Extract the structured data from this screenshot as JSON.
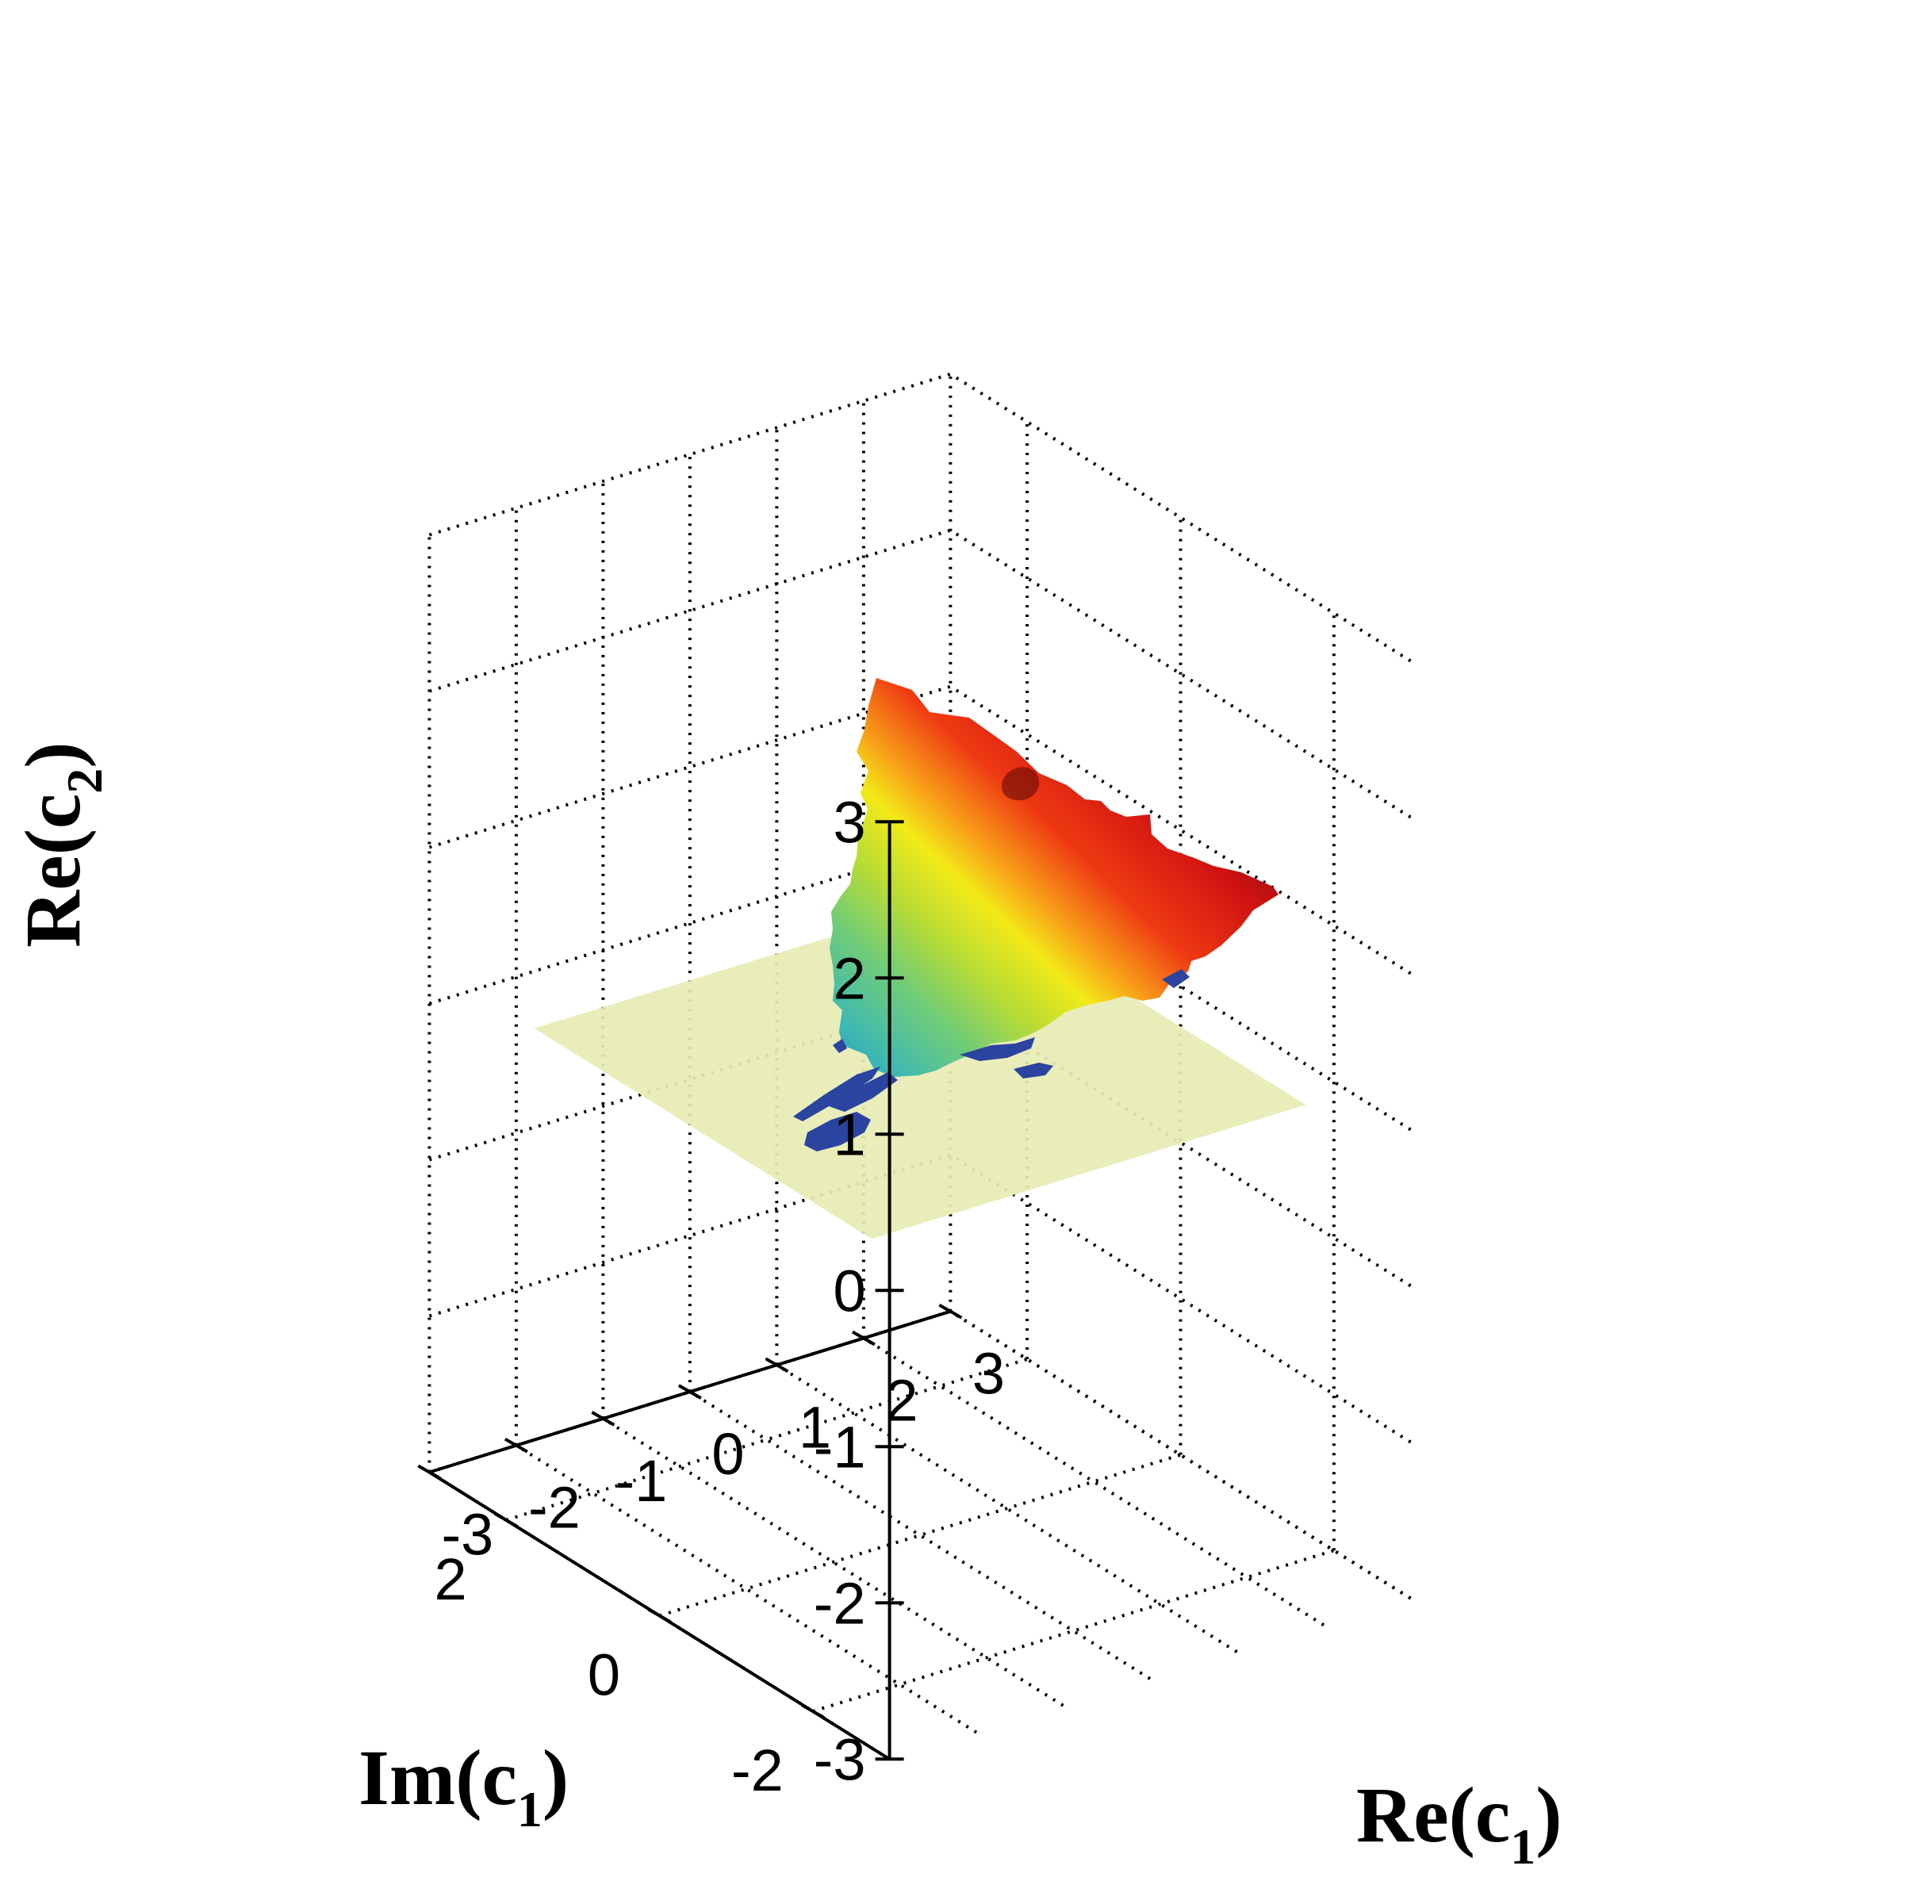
{
  "chart_data": {
    "type": "surface3d",
    "title": "",
    "xlabel": "Re(c1)",
    "ylabel": "Im(c1)",
    "zlabel": "Re(c2)",
    "axis_labels": {
      "x": {
        "base": "Re(c",
        "sub": "1",
        "close": ")"
      },
      "y": {
        "base": "Im(c",
        "sub": "1",
        "close": ")"
      },
      "z": {
        "base": "Re(c",
        "sub": "2",
        "close": ")"
      }
    },
    "xlim": [
      -3,
      3
    ],
    "ylim": [
      -3,
      3
    ],
    "zlim": [
      -3,
      3
    ],
    "x_ticks": [
      {
        "v": -3,
        "label": "-3"
      },
      {
        "v": -2,
        "label": "-2"
      },
      {
        "v": -1,
        "label": "-1"
      },
      {
        "v": 0,
        "label": "0"
      },
      {
        "v": 1,
        "label": "1"
      },
      {
        "v": 2,
        "label": "2"
      },
      {
        "v": 3,
        "label": "3"
      }
    ],
    "y_ticks": [
      {
        "v": -2,
        "label": "-2"
      },
      {
        "v": 0,
        "label": "0"
      },
      {
        "v": 2,
        "label": "2"
      }
    ],
    "z_ticks": [
      {
        "v": -3,
        "label": "-3"
      },
      {
        "v": -2,
        "label": "-2"
      },
      {
        "v": -1,
        "label": "-1"
      },
      {
        "v": 0,
        "label": "0"
      },
      {
        "v": 1,
        "label": "1"
      },
      {
        "v": 2,
        "label": "2"
      },
      {
        "v": 3,
        "label": "3"
      }
    ],
    "grid": true,
    "plane": {
      "z": 0,
      "x_range": [
        -2.5,
        2.5
      ],
      "y_range": [
        -2.2,
        2.2
      ],
      "color": "#e6ecb4"
    },
    "colormap": "jet",
    "colors": {
      "high": "#cc1010",
      "mid": "#f2e818",
      "low": "#2a44a0"
    }
  }
}
